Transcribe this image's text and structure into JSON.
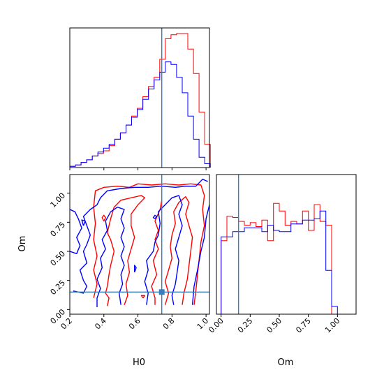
{
  "chart_data": [
    {
      "type": "histogram",
      "panel": "H0 marginal",
      "x_range": [
        0.2,
        1.02
      ],
      "truth": 0.74,
      "colors": {
        "red": "#ff0000",
        "blue": "#0000ff",
        "truth": "#3a7cc0"
      },
      "bin_edges": [
        0.2,
        0.233,
        0.266,
        0.299,
        0.332,
        0.365,
        0.398,
        0.431,
        0.464,
        0.497,
        0.53,
        0.563,
        0.596,
        0.629,
        0.662,
        0.695,
        0.728,
        0.761,
        0.794,
        0.827,
        0.86,
        0.893,
        0.926,
        0.959,
        0.992,
        1.025
      ],
      "series": [
        {
          "name": "",
          "color": "#ff0000",
          "values": [
            1,
            2,
            4,
            6,
            9,
            11,
            13,
            17,
            22,
            27,
            33,
            40,
            46,
            55,
            63,
            70,
            84,
            100,
            103,
            104,
            104,
            92,
            73,
            43,
            18
          ]
        },
        {
          "name": "",
          "color": "#0000ff",
          "values": [
            1,
            2,
            4,
            6,
            9,
            12,
            15,
            18,
            22,
            27,
            33,
            39,
            45,
            53,
            61,
            68,
            74,
            82,
            80,
            70,
            58,
            40,
            22,
            8,
            3
          ]
        }
      ]
    },
    {
      "type": "contour",
      "panel": "Om vs H0",
      "xlabel": "H0",
      "ylabel": "Om",
      "x_range": [
        0.2,
        1.02
      ],
      "y_range": [
        -0.04,
        1.16
      ],
      "x_ticks": [
        "0.2",
        "0.4",
        "0.6",
        "0.8",
        "1.0"
      ],
      "x_tick_values": [
        0.2,
        0.4,
        0.6,
        0.8,
        1.0
      ],
      "y_ticks": [
        "0.00",
        "0.25",
        "0.50",
        "0.75",
        "1.00"
      ],
      "y_tick_values": [
        0.0,
        0.25,
        0.5,
        0.75,
        1.0
      ],
      "truth": {
        "x": 0.74,
        "y": 0.15
      },
      "series": [
        {
          "name": "",
          "color": "#ff0000",
          "contours": [
            [
              [
                0.34,
                0.1
              ],
              [
                0.36,
                0.22
              ],
              [
                0.34,
                0.34
              ],
              [
                0.36,
                0.46
              ],
              [
                0.34,
                0.6
              ],
              [
                0.35,
                0.74
              ],
              [
                0.34,
                0.88
              ],
              [
                0.35,
                1.02
              ],
              [
                0.4,
                1.05
              ],
              [
                0.48,
                1.06
              ],
              [
                0.55,
                1.05
              ],
              [
                0.6,
                1.08
              ],
              [
                0.68,
                1.07
              ],
              [
                0.76,
                1.08
              ],
              [
                0.84,
                1.07
              ],
              [
                0.91,
                1.08
              ],
              [
                0.97,
                1.07
              ],
              [
                0.99,
                0.98
              ],
              [
                0.98,
                0.86
              ],
              [
                0.99,
                0.72
              ],
              [
                0.97,
                0.58
              ],
              [
                0.96,
                0.44
              ],
              [
                0.95,
                0.3
              ],
              [
                0.94,
                0.16
              ],
              [
                0.93,
                0.04
              ]
            ],
            [
              [
                0.42,
                0.03
              ],
              [
                0.43,
                0.1
              ],
              [
                0.41,
                0.14
              ],
              [
                0.42,
                0.2
              ],
              [
                0.43,
                0.3
              ],
              [
                0.44,
                0.38
              ],
              [
                0.46,
                0.5
              ],
              [
                0.44,
                0.6
              ],
              [
                0.42,
                0.66
              ],
              [
                0.44,
                0.78
              ],
              [
                0.46,
                0.88
              ],
              [
                0.5,
                0.94
              ],
              [
                0.56,
                0.96
              ],
              [
                0.62,
                0.98
              ],
              [
                0.64,
                0.96
              ],
              [
                0.6,
                0.9
              ],
              [
                0.56,
                0.82
              ],
              [
                0.56,
                0.72
              ],
              [
                0.58,
                0.62
              ],
              [
                0.56,
                0.52
              ],
              [
                0.54,
                0.42
              ],
              [
                0.55,
                0.32
              ],
              [
                0.53,
                0.22
              ],
              [
                0.54,
                0.12
              ],
              [
                0.52,
                0.04
              ]
            ],
            [
              [
                0.76,
                0.04
              ],
              [
                0.78,
                0.14
              ],
              [
                0.76,
                0.24
              ],
              [
                0.78,
                0.34
              ],
              [
                0.8,
                0.44
              ],
              [
                0.79,
                0.54
              ],
              [
                0.8,
                0.64
              ],
              [
                0.82,
                0.74
              ],
              [
                0.81,
                0.84
              ],
              [
                0.84,
                0.92
              ],
              [
                0.88,
                0.97
              ],
              [
                0.9,
                0.92
              ],
              [
                0.88,
                0.82
              ],
              [
                0.9,
                0.72
              ],
              [
                0.92,
                0.62
              ],
              [
                0.91,
                0.5
              ],
              [
                0.9,
                0.38
              ],
              [
                0.89,
                0.26
              ],
              [
                0.87,
                0.14
              ],
              [
                0.86,
                0.04
              ]
            ],
            [
              [
                0.7,
                0.04
              ],
              [
                0.7,
                0.1
              ],
              [
                0.68,
                0.2
              ],
              [
                0.71,
                0.3
              ],
              [
                0.69,
                0.42
              ],
              [
                0.72,
                0.52
              ],
              [
                0.7,
                0.6
              ],
              [
                0.72,
                0.68
              ],
              [
                0.7,
                0.76
              ],
              [
                0.73,
                0.86
              ],
              [
                0.74,
                0.94
              ]
            ],
            [
              [
                0.4,
                0.76
              ],
              [
                0.41,
                0.79
              ],
              [
                0.4,
                0.81
              ],
              [
                0.39,
                0.79
              ],
              [
                0.4,
                0.76
              ]
            ],
            [
              [
                0.63,
                0.1
              ],
              [
                0.64,
                0.12
              ],
              [
                0.62,
                0.12
              ],
              [
                0.63,
                0.1
              ]
            ]
          ]
        },
        {
          "name": "",
          "color": "#0000ff",
          "contours": [
            [
              [
                0.22,
                0.16
              ],
              [
                0.28,
                0.14
              ],
              [
                0.3,
                0.2
              ],
              [
                0.28,
                0.25
              ],
              [
                0.26,
                0.34
              ],
              [
                0.3,
                0.4
              ],
              [
                0.28,
                0.5
              ],
              [
                0.3,
                0.56
              ],
              [
                0.32,
                0.64
              ],
              [
                0.3,
                0.72
              ],
              [
                0.28,
                0.8
              ],
              [
                0.32,
                0.86
              ],
              [
                0.36,
                0.9
              ],
              [
                0.38,
                0.96
              ],
              [
                0.42,
                1.02
              ],
              [
                0.5,
                1.04
              ],
              [
                0.58,
                1.05
              ],
              [
                0.66,
                1.05
              ],
              [
                0.74,
                1.06
              ],
              [
                0.82,
                1.05
              ],
              [
                0.88,
                1.06
              ],
              [
                0.94,
                1.06
              ],
              [
                0.98,
                1.12
              ],
              [
                1.01,
                1.1
              ]
            ],
            [
              [
                0.2,
                0.5
              ],
              [
                0.24,
                0.48
              ],
              [
                0.26,
                0.55
              ],
              [
                0.24,
                0.62
              ],
              [
                0.27,
                0.7
              ],
              [
                0.25,
                0.78
              ],
              [
                0.23,
                0.84
              ],
              [
                0.2,
                0.86
              ]
            ],
            [
              [
                0.36,
                0.02
              ],
              [
                0.36,
                0.1
              ],
              [
                0.38,
                0.18
              ],
              [
                0.36,
                0.26
              ],
              [
                0.39,
                0.36
              ],
              [
                0.38,
                0.44
              ],
              [
                0.41,
                0.52
              ],
              [
                0.39,
                0.6
              ],
              [
                0.42,
                0.68
              ],
              [
                0.41,
                0.76
              ],
              [
                0.44,
                0.84
              ],
              [
                0.48,
                0.88
              ],
              [
                0.52,
                0.86
              ],
              [
                0.5,
                0.78
              ],
              [
                0.52,
                0.7
              ],
              [
                0.5,
                0.62
              ],
              [
                0.52,
                0.54
              ],
              [
                0.5,
                0.46
              ],
              [
                0.52,
                0.38
              ],
              [
                0.5,
                0.3
              ],
              [
                0.51,
                0.22
              ],
              [
                0.49,
                0.14
              ],
              [
                0.5,
                0.04
              ]
            ],
            [
              [
                0.65,
                0.04
              ],
              [
                0.66,
                0.14
              ],
              [
                0.64,
                0.24
              ],
              [
                0.66,
                0.34
              ],
              [
                0.65,
                0.42
              ],
              [
                0.69,
                0.5
              ],
              [
                0.7,
                0.58
              ],
              [
                0.72,
                0.64
              ],
              [
                0.73,
                0.74
              ],
              [
                0.72,
                0.84
              ],
              [
                0.76,
                0.9
              ],
              [
                0.8,
                0.96
              ],
              [
                0.84,
                0.98
              ],
              [
                0.86,
                0.9
              ],
              [
                0.84,
                0.82
              ],
              [
                0.86,
                0.72
              ],
              [
                0.84,
                0.62
              ],
              [
                0.82,
                0.52
              ],
              [
                0.84,
                0.42
              ],
              [
                0.83,
                0.32
              ],
              [
                0.82,
                0.22
              ],
              [
                0.8,
                0.12
              ],
              [
                0.81,
                0.04
              ]
            ],
            [
              [
                0.92,
                0.04
              ],
              [
                0.93,
                0.2
              ],
              [
                0.95,
                0.34
              ],
              [
                0.97,
                0.5
              ],
              [
                0.99,
                0.62
              ],
              [
                1.0,
                0.78
              ],
              [
                1.02,
                0.9
              ]
            ],
            [
              [
                0.28,
                0.72
              ],
              [
                0.29,
                0.76
              ],
              [
                0.27,
                0.77
              ],
              [
                0.28,
                0.72
              ]
            ],
            [
              [
                0.7,
                0.78
              ],
              [
                0.71,
                0.8
              ],
              [
                0.7,
                0.81
              ],
              [
                0.69,
                0.79
              ],
              [
                0.7,
                0.78
              ]
            ],
            [
              [
                0.58,
                0.32
              ],
              [
                0.59,
                0.36
              ],
              [
                0.58,
                0.38
              ],
              [
                0.58,
                0.32
              ]
            ]
          ]
        }
      ]
    },
    {
      "type": "histogram",
      "panel": "Om marginal",
      "xlabel": "Om",
      "x_range": [
        -0.04,
        1.16
      ],
      "x_ticks": [
        "0.00",
        "0.25",
        "0.50",
        "0.75",
        "1.00"
      ],
      "x_tick_values": [
        0.0,
        0.25,
        0.5,
        0.75,
        1.0
      ],
      "truth": 0.15,
      "bin_edges": [
        0.0,
        0.05,
        0.1,
        0.15,
        0.2,
        0.25,
        0.3,
        0.35,
        0.4,
        0.45,
        0.5,
        0.55,
        0.6,
        0.65,
        0.7,
        0.75,
        0.8,
        0.85,
        0.9,
        0.95,
        1.0,
        1.05,
        1.1
      ],
      "series": [
        {
          "name": "",
          "color": "#ff0000",
          "values": [
            57,
            76,
            75,
            72,
            69,
            71,
            68,
            73,
            57,
            86,
            80,
            69,
            72,
            70,
            80,
            65,
            85,
            72,
            69,
            0,
            0,
            0
          ]
        },
        {
          "name": "",
          "color": "#0000ff",
          "values": [
            60,
            60,
            64,
            64,
            67,
            67,
            67,
            64,
            69,
            65,
            64,
            64,
            70,
            70,
            73,
            73,
            74,
            80,
            34,
            6,
            0,
            0
          ]
        }
      ]
    }
  ]
}
